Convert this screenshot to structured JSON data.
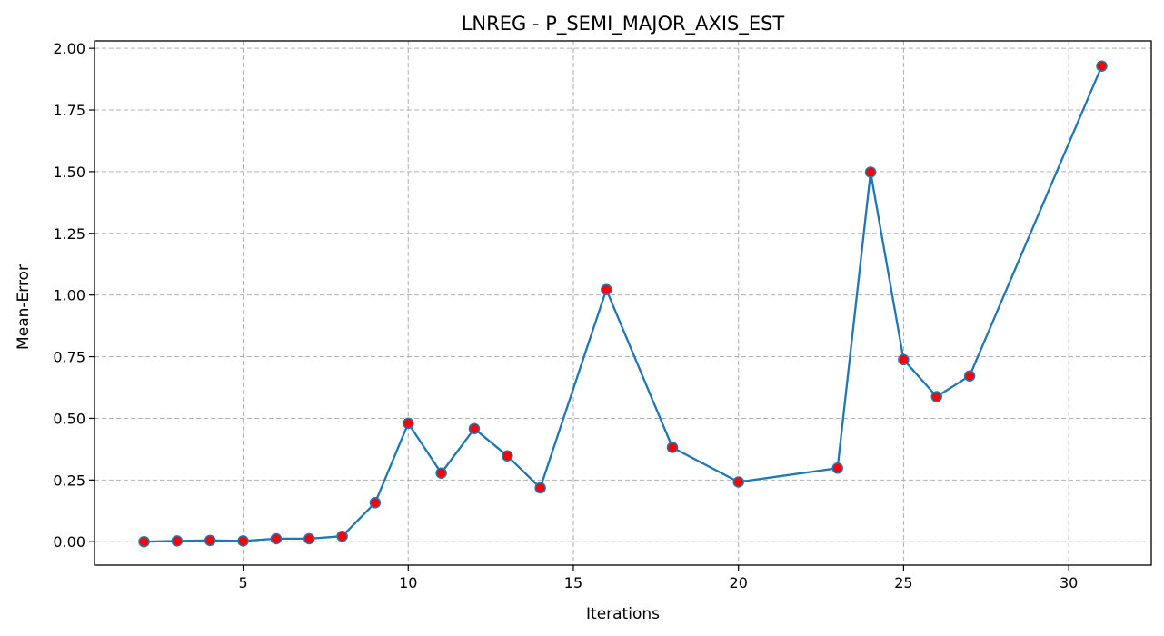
{
  "chart_data": {
    "type": "line",
    "title": "LNREG - P_SEMI_MAJOR_AXIS_EST",
    "xlabel": "Iterations",
    "ylabel": "Mean-Error",
    "xlim": [
      0.5,
      32.5
    ],
    "ylim": [
      -0.095,
      2.03
    ],
    "xticks": [
      5,
      10,
      15,
      20,
      25,
      30
    ],
    "xtick_labels": [
      "5",
      "10",
      "15",
      "20",
      "25",
      "30"
    ],
    "yticks": [
      0.0,
      0.25,
      0.5,
      0.75,
      1.0,
      1.25,
      1.5,
      1.75,
      2.0
    ],
    "ytick_labels": [
      "0.00",
      "0.25",
      "0.50",
      "0.75",
      "1.00",
      "1.25",
      "1.50",
      "1.75",
      "2.00"
    ],
    "grid": true,
    "series": [
      {
        "x": [
          2,
          3,
          4,
          5,
          6,
          7,
          8,
          9,
          10,
          11,
          12,
          13,
          14,
          16,
          18,
          20,
          23,
          24,
          25,
          26,
          27,
          31
        ],
        "y": [
          0.0,
          0.003,
          0.005,
          0.003,
          0.012,
          0.012,
          0.022,
          0.158,
          0.48,
          0.278,
          0.458,
          0.348,
          0.218,
          1.022,
          0.382,
          0.242,
          0.298,
          1.498,
          0.738,
          0.588,
          0.672,
          1.928
        ],
        "line_color": "#1f77b4",
        "marker_color": "#ff0000",
        "marker_edge_color": "#1f77b4"
      }
    ]
  }
}
